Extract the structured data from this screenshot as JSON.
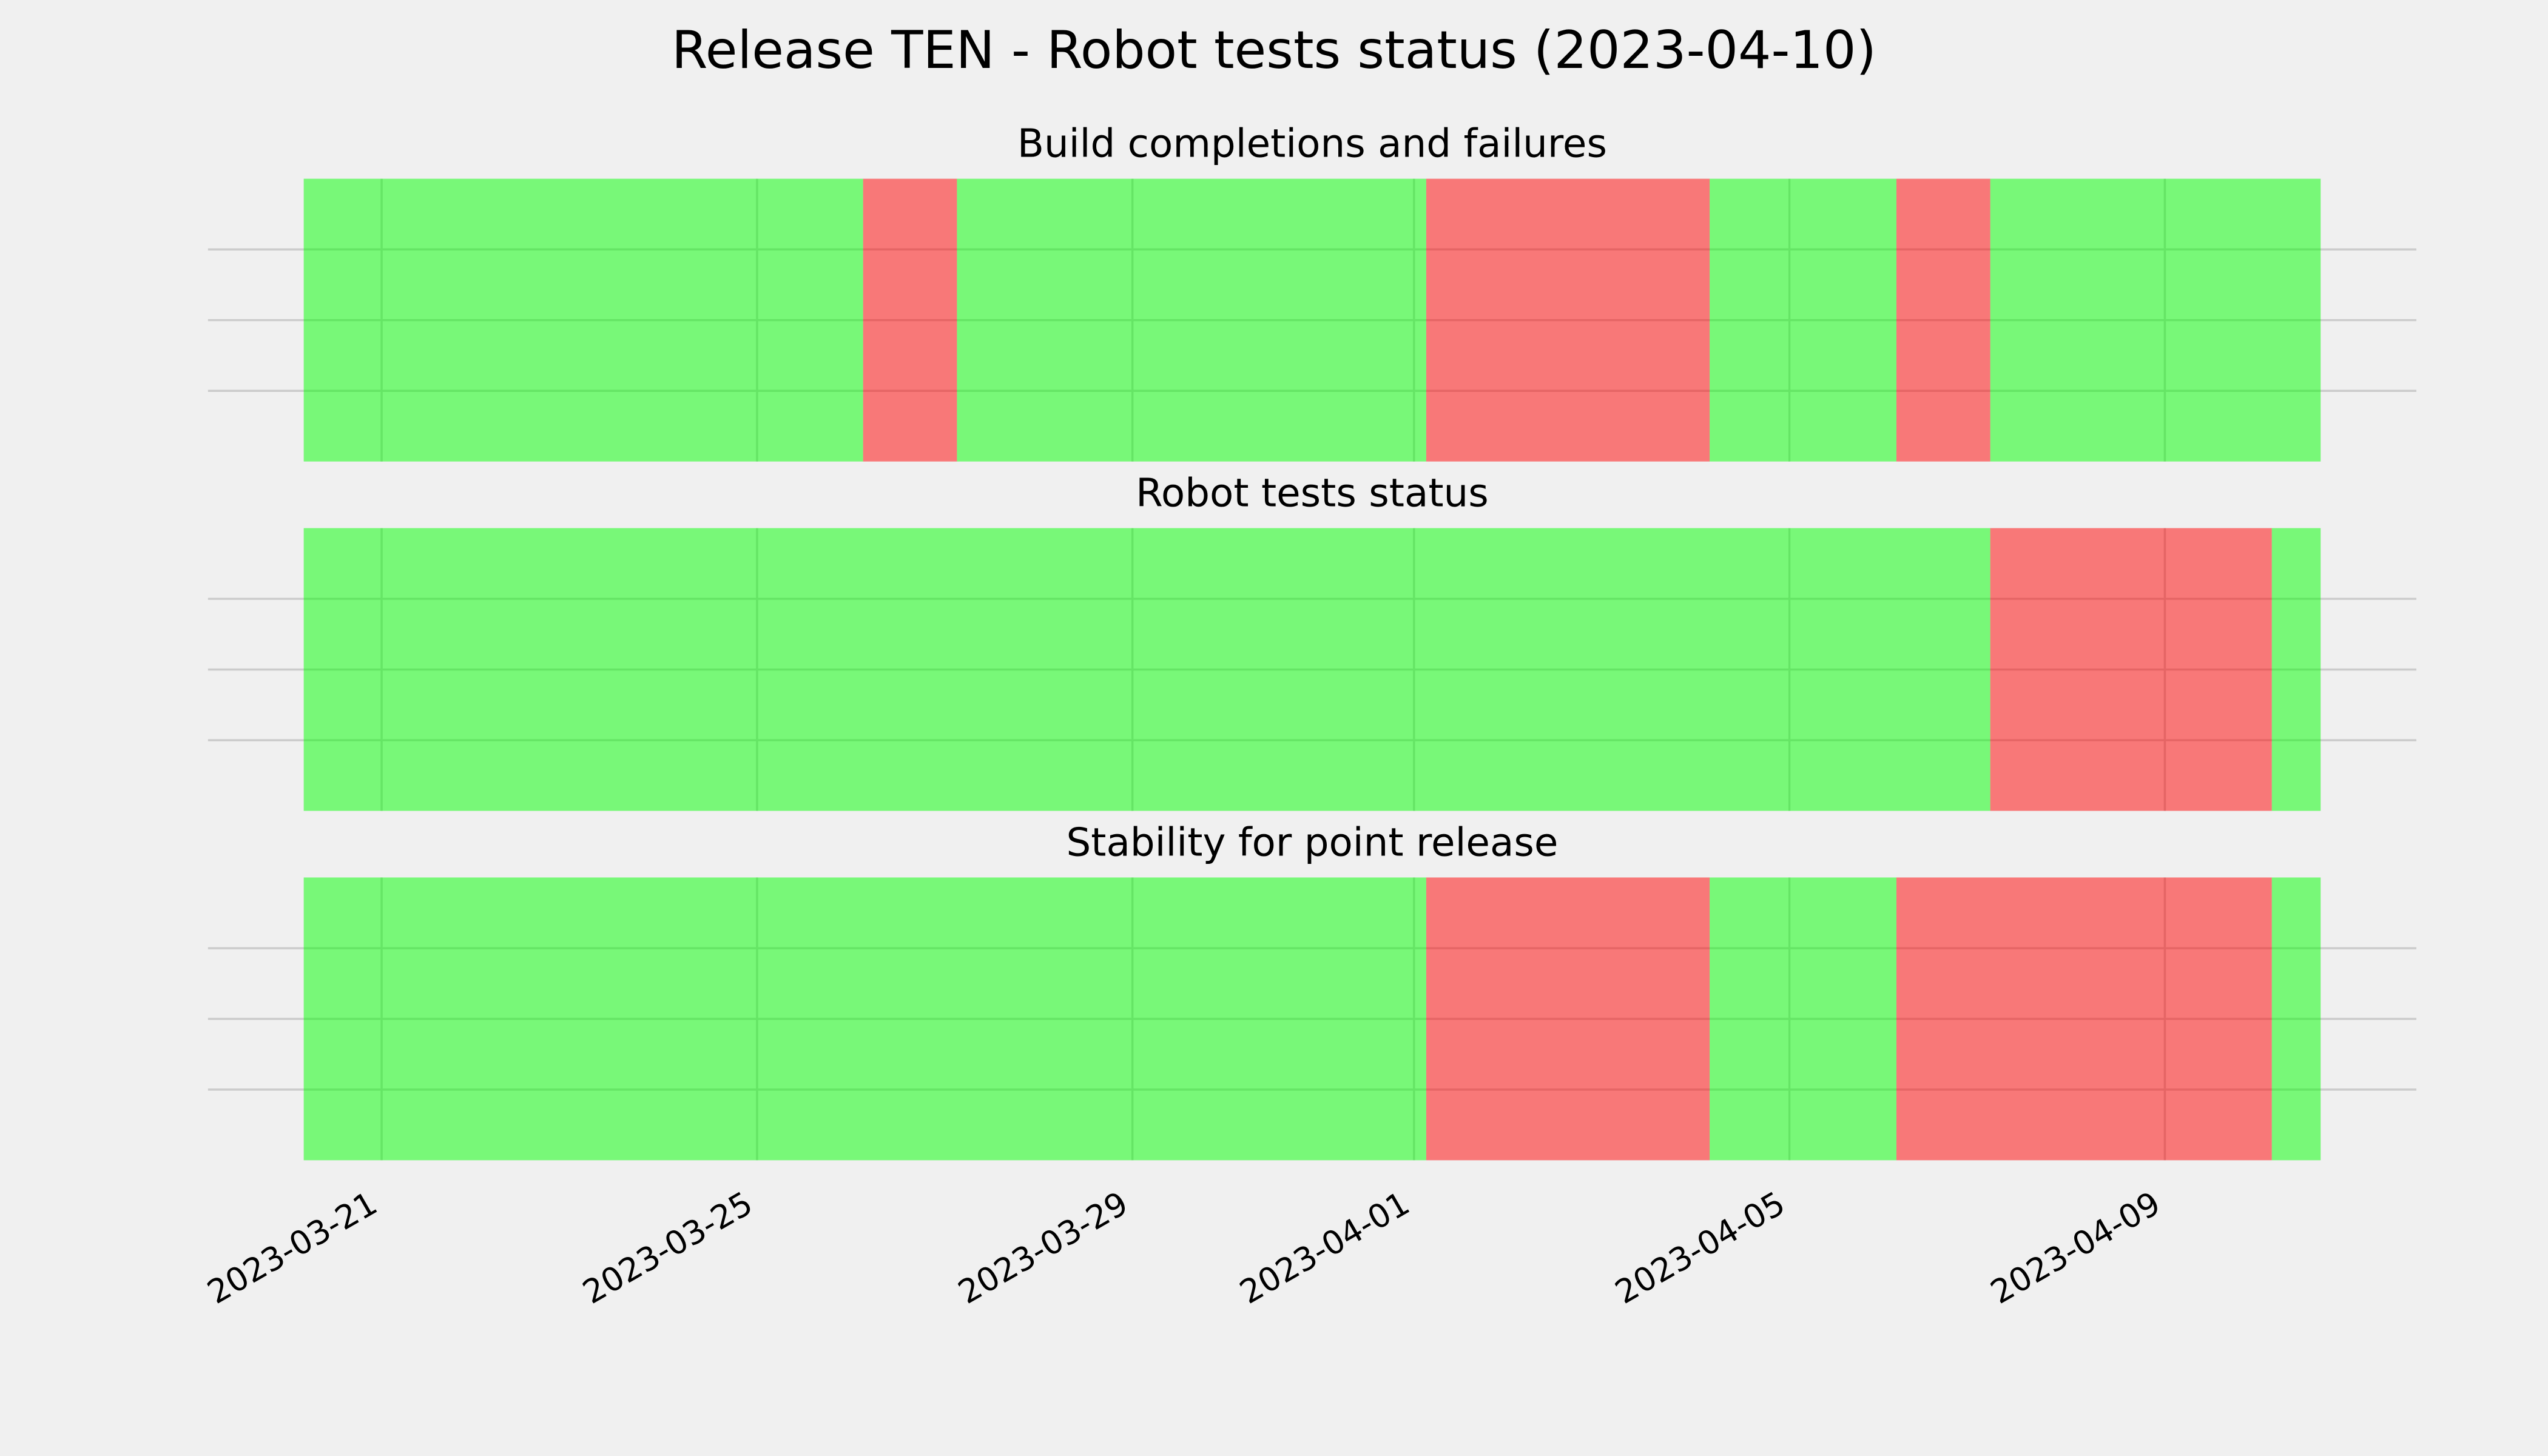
{
  "title": "Release TEN - Robot tests status (2023-04-10)",
  "chart_data": [
    {
      "type": "timeline",
      "title": "Build completions and failures",
      "segments": [
        {
          "start": 19436.17,
          "end": 19442.13,
          "color": "#00ff00"
        },
        {
          "start": 19442.13,
          "end": 19443.13,
          "color": "#ff0000"
        },
        {
          "start": 19443.13,
          "end": 19448.13,
          "color": "#00ff00"
        },
        {
          "start": 19448.13,
          "end": 19451.15,
          "color": "#ff0000"
        },
        {
          "start": 19451.15,
          "end": 19453.14,
          "color": "#00ff00"
        },
        {
          "start": 19453.14,
          "end": 19454.14,
          "color": "#ff0000"
        },
        {
          "start": 19454.14,
          "end": 19457.66,
          "color": "#00ff00"
        }
      ],
      "xlim": [
        19435.15,
        19458.68
      ],
      "ylim": [
        0,
        4
      ],
      "yticks": [
        1,
        2,
        3
      ],
      "grid": true
    },
    {
      "type": "timeline",
      "title": "Robot tests status",
      "segments": [
        {
          "start": 19436.17,
          "end": 19454.14,
          "color": "#00ff00"
        },
        {
          "start": 19454.14,
          "end": 19457.14,
          "color": "#ff0000"
        },
        {
          "start": 19457.14,
          "end": 19457.66,
          "color": "#00ff00"
        }
      ],
      "xlim": [
        19435.15,
        19458.68
      ],
      "ylim": [
        0,
        4
      ],
      "yticks": [
        1,
        2,
        3
      ],
      "grid": true
    },
    {
      "type": "timeline",
      "title": "Stability for point release",
      "segments": [
        {
          "start": 19436.17,
          "end": 19448.13,
          "color": "#00ff00"
        },
        {
          "start": 19448.13,
          "end": 19451.15,
          "color": "#ff0000"
        },
        {
          "start": 19451.15,
          "end": 19453.14,
          "color": "#00ff00"
        },
        {
          "start": 19453.14,
          "end": 19457.14,
          "color": "#ff0000"
        },
        {
          "start": 19457.14,
          "end": 19457.66,
          "color": "#00ff00"
        }
      ],
      "xlim": [
        19435.15,
        19458.68
      ],
      "ylim": [
        0,
        4
      ],
      "yticks": [
        1,
        2,
        3
      ],
      "grid": true,
      "xticks": [
        {
          "value": 19437,
          "label": "2023-03-21"
        },
        {
          "value": 19441,
          "label": "2023-03-25"
        },
        {
          "value": 19445,
          "label": "2023-03-29"
        },
        {
          "value": 19448,
          "label": "2023-04-01"
        },
        {
          "value": 19452,
          "label": "2023-04-05"
        },
        {
          "value": 19456,
          "label": "2023-04-09"
        }
      ]
    }
  ]
}
